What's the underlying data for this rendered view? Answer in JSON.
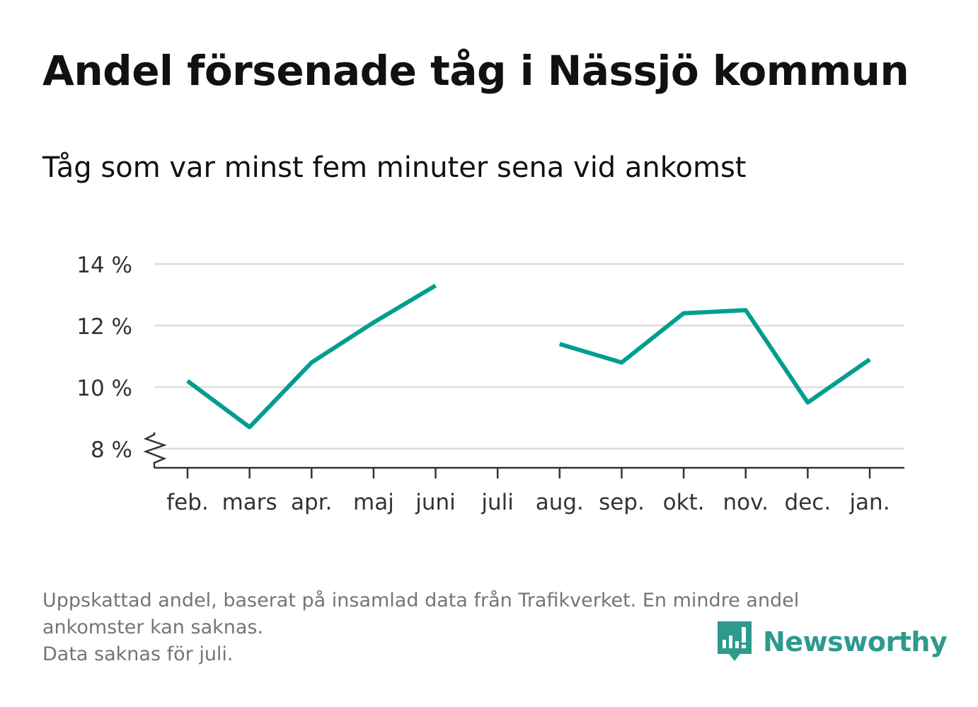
{
  "title": "Andel försenade tåg i Nässjö kommun",
  "subtitle": "Tåg som var minst fem minuter sena vid ankomst",
  "footnote": {
    "line1": "Uppskattad andel, baserat på insamlad data från Trafikverket. En mindre andel",
    "line2": "ankomster kan saknas.",
    "line3": "Data saknas för juli."
  },
  "brand": {
    "name": "Newsworthy",
    "icon": "bar-chart-speech-bubble-icon",
    "color": "#2e9a8e"
  },
  "chart_data": {
    "type": "line",
    "categories": [
      "feb.",
      "mars",
      "apr.",
      "maj",
      "juni",
      "juli",
      "aug.",
      "sep.",
      "okt.",
      "nov.",
      "dec.",
      "jan."
    ],
    "series": [
      {
        "values": [
          10.2,
          8.7,
          10.8,
          12.1,
          13.3,
          null,
          11.4,
          10.8,
          12.4,
          12.5,
          9.5,
          10.9
        ]
      }
    ],
    "yticks": [
      "8 %",
      "10 %",
      "12 %",
      "14 %"
    ],
    "ytick_values": [
      8,
      10,
      12,
      14
    ],
    "ylim": [
      8,
      14
    ],
    "y_axis_break": true,
    "grid": true,
    "line_color": "#009e8f",
    "xlabel": "",
    "ylabel": ""
  }
}
